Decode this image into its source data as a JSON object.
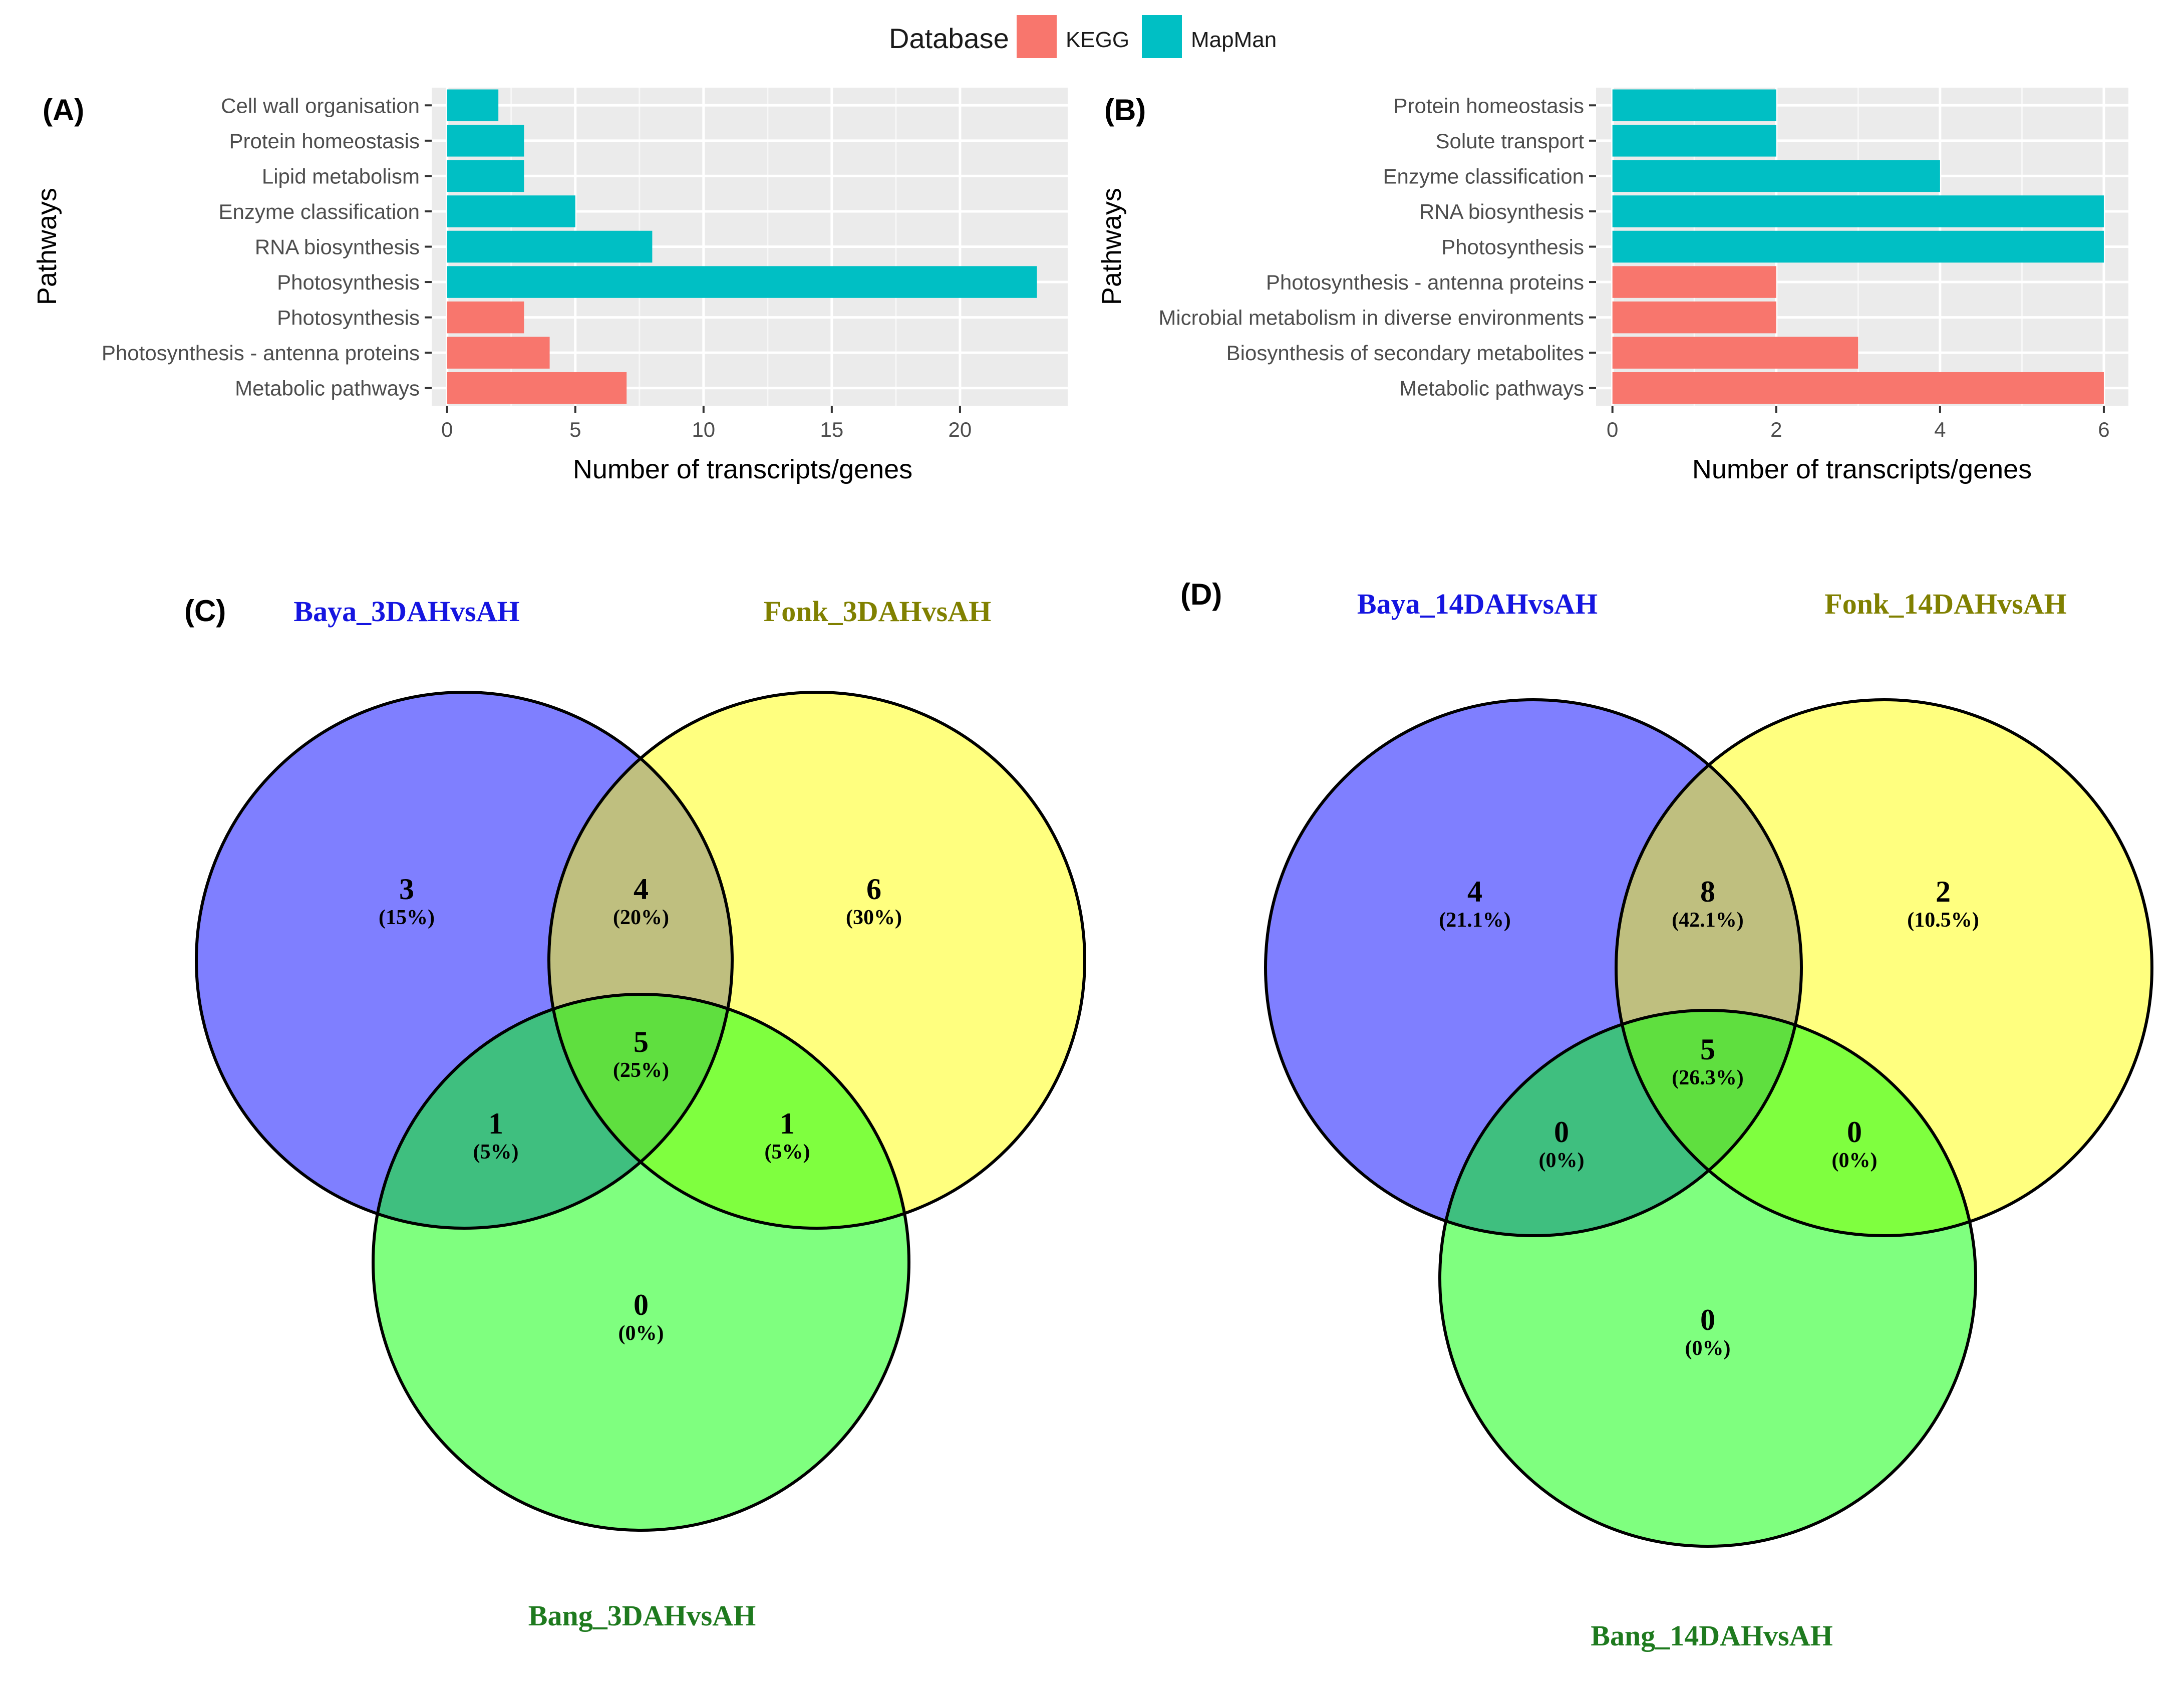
{
  "legend": {
    "title": "Database",
    "entries": [
      {
        "label": "KEGG",
        "color": "#F8766D"
      },
      {
        "label": "MapMan",
        "color": "#00BFC4"
      }
    ]
  },
  "chart_data": [
    {
      "type": "bar",
      "panel": "(A)",
      "orientation": "horizontal",
      "ylabel": "Pathways",
      "xlabel": "Number of transcripts/genes",
      "xlim": [
        -0.6,
        24.2
      ],
      "xticks": [
        0,
        5,
        10,
        15,
        20
      ],
      "categories": [
        "Cell wall organisation",
        "Protein homeostasis",
        "Lipid metabolism",
        "Enzyme classification",
        "RNA biosynthesis",
        "Photosynthesis",
        "Photosynthesis",
        "Photosynthesis - antenna proteins",
        "Metabolic pathways"
      ],
      "values": [
        2,
        3,
        3,
        5,
        8,
        23,
        3,
        4,
        7
      ],
      "database": [
        "MapMan",
        "MapMan",
        "MapMan",
        "MapMan",
        "MapMan",
        "MapMan",
        "KEGG",
        "KEGG",
        "KEGG"
      ]
    },
    {
      "type": "bar",
      "panel": "(B)",
      "orientation": "horizontal",
      "ylabel": "Pathways",
      "xlabel": "Number of transcripts/genes",
      "xlim": [
        -0.2,
        6.3
      ],
      "xticks": [
        0,
        2,
        4,
        6
      ],
      "categories": [
        "Protein homeostasis",
        "Solute transport",
        "Enzyme classification",
        "RNA biosynthesis",
        "Photosynthesis",
        "Photosynthesis - antenna proteins",
        "Microbial metabolism in diverse environments",
        "Biosynthesis of secondary metabolites",
        "Metabolic pathways"
      ],
      "values": [
        2,
        2,
        4,
        6,
        6,
        2,
        2,
        3,
        6
      ],
      "database": [
        "MapMan",
        "MapMan",
        "MapMan",
        "MapMan",
        "MapMan",
        "KEGG",
        "KEGG",
        "KEGG",
        "KEGG"
      ]
    },
    {
      "type": "venn",
      "panel": "(C)",
      "sets": [
        {
          "name": "Baya_3DAHvsAH",
          "color": "#0000FF"
        },
        {
          "name": "Fonk_3DAHvsAH",
          "color": "#FFFF00"
        },
        {
          "name": "Bang_3DAHvsAH",
          "color": "#00FF00"
        }
      ],
      "regions": {
        "baya_only": {
          "count": "3",
          "pct": "(15%)"
        },
        "baya_fonk": {
          "count": "4",
          "pct": "(20%)"
        },
        "fonk_only": {
          "count": "6",
          "pct": "(30%)"
        },
        "all": {
          "count": "5",
          "pct": "(25%)"
        },
        "baya_bang": {
          "count": "1",
          "pct": "(5%)"
        },
        "fonk_bang": {
          "count": "1",
          "pct": "(5%)"
        },
        "bang_only": {
          "count": "0",
          "pct": "(0%)"
        }
      }
    },
    {
      "type": "venn",
      "panel": "(D)",
      "sets": [
        {
          "name": "Baya_14DAHvsAH",
          "color": "#0000FF"
        },
        {
          "name": "Fonk_14DAHvsAH",
          "color": "#FFFF00"
        },
        {
          "name": "Bang_14DAHvsAH",
          "color": "#00FF00"
        }
      ],
      "regions": {
        "baya_only": {
          "count": "4",
          "pct": "(21.1%)"
        },
        "baya_fonk": {
          "count": "8",
          "pct": "(42.1%)"
        },
        "fonk_only": {
          "count": "2",
          "pct": "(10.5%)"
        },
        "all": {
          "count": "5",
          "pct": "(26.3%)"
        },
        "baya_bang": {
          "count": "0",
          "pct": "(0%)"
        },
        "fonk_bang": {
          "count": "0",
          "pct": "(0%)"
        },
        "bang_only": {
          "count": "0",
          "pct": "(0%)"
        }
      }
    }
  ]
}
